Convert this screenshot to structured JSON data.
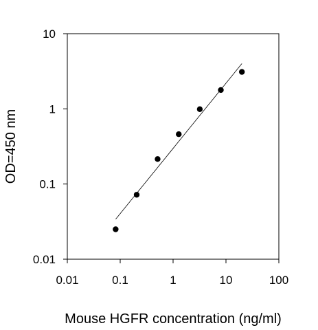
{
  "chart_data": {
    "type": "scatter",
    "title": "",
    "xlabel": "Mouse HGFR concentration (ng/ml)",
    "ylabel": "OD=450 nm",
    "xscale": "log",
    "yscale": "log",
    "xlim": [
      0.01,
      100
    ],
    "ylim": [
      0.01,
      10
    ],
    "x_ticks": [
      0.01,
      0.1,
      1,
      10,
      100
    ],
    "x_tick_labels": [
      "0.01",
      "0.1",
      "1",
      "10",
      "100"
    ],
    "y_ticks": [
      0.01,
      0.1,
      1,
      10
    ],
    "y_tick_labels": [
      "0.01",
      "0.1",
      "1",
      "10"
    ],
    "grid": false,
    "legend": "none",
    "marker_color": "#000000",
    "series": [
      {
        "x": [
          0.082,
          0.205,
          0.51,
          1.28,
          3.2,
          8.0,
          20.0
        ],
        "y": [
          0.025,
          0.072,
          0.215,
          0.46,
          0.99,
          1.78,
          3.1
        ]
      }
    ],
    "fit_line": {
      "x": [
        0.082,
        20.0
      ],
      "y": [
        0.034,
        4.0
      ]
    }
  }
}
